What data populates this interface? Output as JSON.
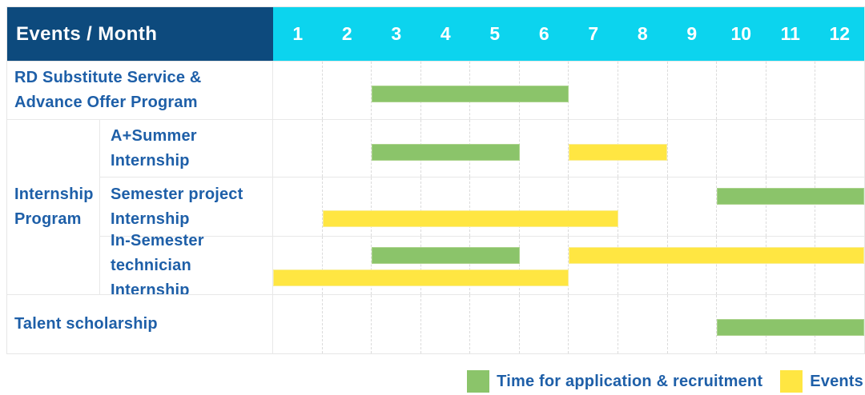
{
  "colors": {
    "header_navy": "#0d4a7d",
    "header_cyan": "#0cd4ee",
    "label_text_blue": "#1e5fa8",
    "green_bar": "#8bc46a",
    "yellow_bar": "#ffe642",
    "grid_line": "#e8e8e8"
  },
  "chart_data": {
    "type": "bar",
    "subtype": "gantt-schedule",
    "title_cell": "Events / Month",
    "x_axis": {
      "label": "Month",
      "months": [
        "1",
        "2",
        "3",
        "4",
        "5",
        "6",
        "7",
        "8",
        "9",
        "10",
        "11",
        "12"
      ],
      "range": [
        1,
        12
      ],
      "grid": "dashed-vertical"
    },
    "legend": [
      {
        "label": "Time for application & recruitment",
        "color": "#8bc46a",
        "key": "green"
      },
      {
        "label": "Events",
        "color": "#ffe642",
        "key": "yellow"
      }
    ],
    "legend_position": "bottom-right",
    "group_label": {
      "text": "Internship Program",
      "lines": [
        "Internship",
        "Program"
      ],
      "spans_row_indexes": [
        1,
        2,
        3
      ]
    },
    "rows": [
      {
        "label": "RD Substitute Service & Advance Offer Program",
        "label_lines": [
          "RD Substitute Service &",
          "Advance Offer Program"
        ],
        "group": "",
        "bars": [
          {
            "series": "Time for application & recruitment",
            "key": "green",
            "start_month": 3,
            "end_month": 6,
            "track": "single"
          }
        ]
      },
      {
        "label": "A+Summer Internship",
        "label_lines": [
          "A+Summer",
          "Internship"
        ],
        "group": "Internship Program",
        "bars": [
          {
            "series": "Time for application & recruitment",
            "key": "green",
            "start_month": 3,
            "end_month": 5,
            "track": "single"
          },
          {
            "series": "Events",
            "key": "yellow",
            "start_month": 7,
            "end_month": 8,
            "track": "single"
          }
        ]
      },
      {
        "label": "Semester project Internship",
        "label_lines": [
          "Semester project",
          "Internship"
        ],
        "group": "Internship Program",
        "bars": [
          {
            "series": "Time for application & recruitment",
            "key": "green",
            "start_month": 10,
            "end_month": 12,
            "track": "upper"
          },
          {
            "series": "Events",
            "key": "yellow",
            "start_month": 2,
            "end_month": 7,
            "track": "lower"
          }
        ]
      },
      {
        "label": "In-Semester technician Internship",
        "label_lines": [
          "In-Semester",
          "technician Internship"
        ],
        "group": "Internship Program",
        "bars": [
          {
            "series": "Time for application & recruitment",
            "key": "green",
            "start_month": 3,
            "end_month": 5,
            "track": "upper"
          },
          {
            "series": "Events",
            "key": "yellow",
            "start_month": 7,
            "end_month": 12,
            "track": "upper"
          },
          {
            "series": "Events",
            "key": "yellow",
            "start_month": 1,
            "end_month": 6,
            "track": "lower"
          }
        ]
      },
      {
        "label": "Talent scholarship",
        "label_lines": [
          "Talent scholarship"
        ],
        "group": "",
        "bars": [
          {
            "series": "Time for application & recruitment",
            "key": "green",
            "start_month": 10,
            "end_month": 12,
            "track": "single"
          }
        ]
      }
    ]
  }
}
